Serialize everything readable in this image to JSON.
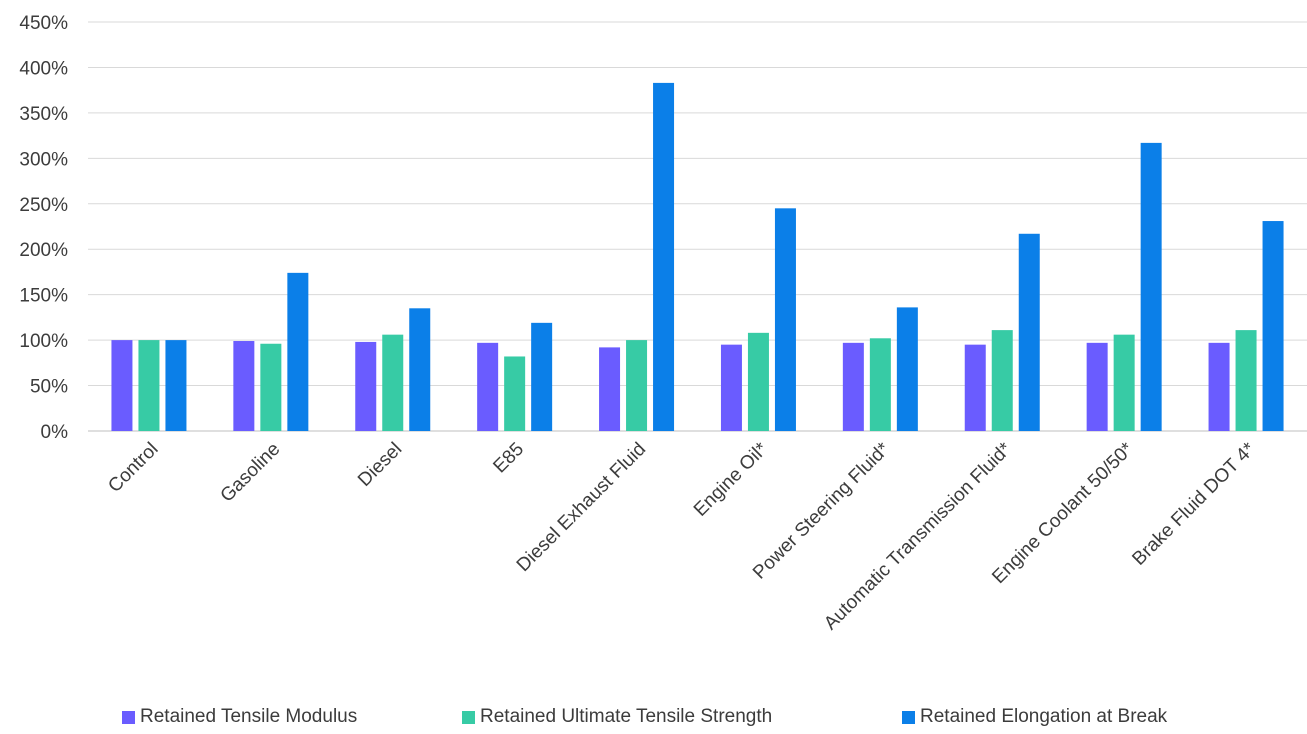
{
  "chart_data": {
    "type": "bar",
    "categories": [
      "Control",
      "Gasoline",
      "Diesel",
      "E85",
      "Diesel Exhaust Fluid",
      "Engine Oil*",
      "Power Steering Fluid*",
      "Automatic Transmission Fluid*",
      "Engine Coolant 50/50*",
      "Brake Fluid DOT 4*"
    ],
    "series": [
      {
        "name": "Retained Tensile Modulus",
        "color": "#6a5cff",
        "values": [
          100,
          99,
          98,
          97,
          92,
          95,
          97,
          95,
          97,
          97
        ]
      },
      {
        "name": "Retained Ultimate Tensile Strength",
        "color": "#37cba5",
        "values": [
          100,
          96,
          106,
          82,
          100,
          108,
          102,
          111,
          106,
          111
        ]
      },
      {
        "name": "Retained Elongation at Break",
        "color": "#0b7fe8",
        "values": [
          100,
          174,
          135,
          119,
          383,
          245,
          136,
          217,
          317,
          231
        ]
      }
    ],
    "y_ticks": [
      "0%",
      "50%",
      "100%",
      "150%",
      "200%",
      "250%",
      "300%",
      "350%",
      "400%",
      "450%"
    ],
    "ylim": [
      0,
      450
    ],
    "grid": true,
    "legend_position": "bottom"
  }
}
